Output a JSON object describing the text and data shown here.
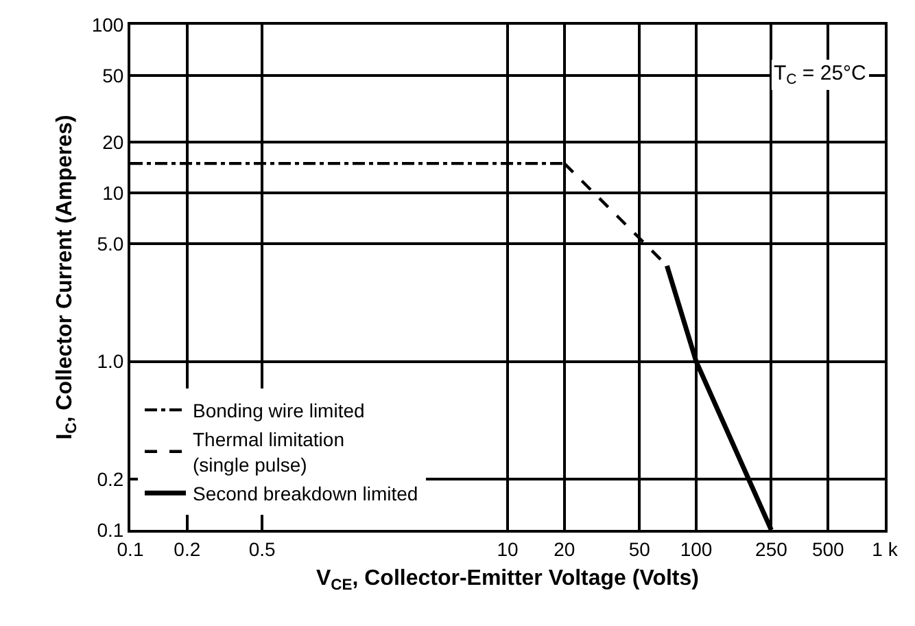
{
  "chart_data": {
    "type": "line",
    "xlabel": "V$_{CE}$, Collector-Emitter Voltage (Volts)",
    "ylabel": "I$_{C}$, Collector Current (Amperes)",
    "annotations": [
      "T$_{C}$ = 25°C"
    ],
    "log": "xy",
    "grid": true,
    "legend": "bottom left",
    "xlim": [
      0.1,
      1000
    ],
    "ylim": [
      0.1,
      100
    ],
    "xticks": [
      0.1,
      0.2,
      0.5,
      10,
      20,
      50,
      100,
      250,
      500,
      {
        "value": 1000,
        "label": "1 k"
      }
    ],
    "yticks": [
      0.1,
      0.2,
      {
        "value": 1,
        "label": "1.0"
      },
      {
        "value": 5,
        "label": "5.0"
      },
      10,
      20,
      50,
      100
    ],
    "series": [
      {
        "name": "Bonding wire limited",
        "color": "#000000",
        "line_style": "dashed",
        "x": [
          0.1,
          20
        ],
        "values": [
          15,
          15
        ]
      },
      {
        "name": "Thermal limitation\n(single pulse)",
        "color": "#000000",
        "line_style": "dashed",
        "x": [
          20,
          50,
          70
        ],
        "values": [
          15,
          5.4,
          3.7
        ]
      },
      {
        "name": "Second breakdown limited",
        "color": "#000000",
        "line_style": "solid",
        "x": [
          70,
          100,
          250
        ],
        "values": [
          3.7,
          1.0,
          0.1
        ]
      }
    ]
  }
}
